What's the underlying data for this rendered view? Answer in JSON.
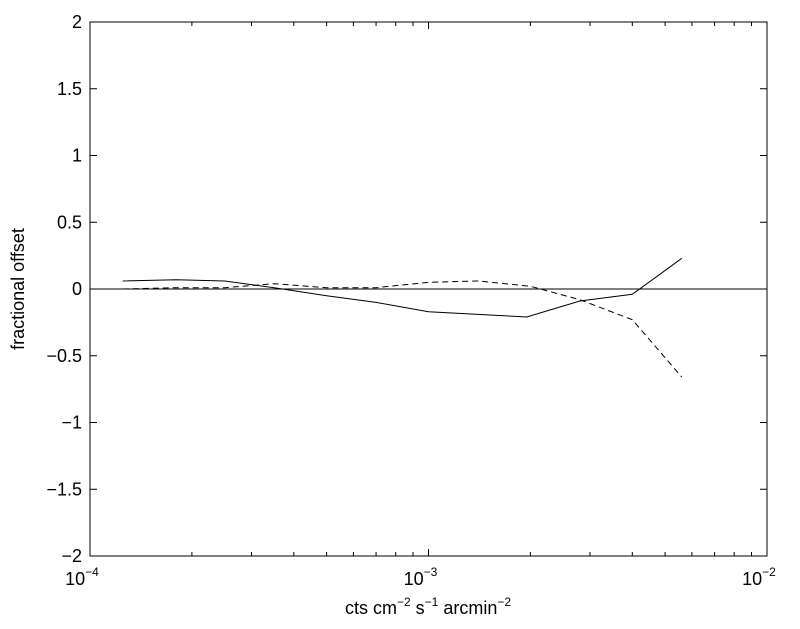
{
  "chart_data": {
    "type": "line",
    "title": "",
    "xlabel": {
      "parts": [
        {
          "text": "cts cm"
        },
        {
          "text": "−2",
          "sup": true
        },
        {
          "text": " s"
        },
        {
          "text": "−1",
          "sup": true
        },
        {
          "text": " arcmin"
        },
        {
          "text": "−2",
          "sup": true
        }
      ]
    },
    "ylabel": "fractional offset",
    "xscale": "log",
    "xlim": [
      0.0001,
      0.01
    ],
    "ylim": [
      -2,
      2
    ],
    "grid": false,
    "legend": "none",
    "x_ticks": [
      {
        "value": 0.0001,
        "base": "10",
        "exp": "−4"
      },
      {
        "value": 0.001,
        "base": "10",
        "exp": "−3"
      },
      {
        "value": 0.01,
        "base": "10",
        "exp": "−2"
      }
    ],
    "y_ticks": [
      {
        "value": 2,
        "label": "2"
      },
      {
        "value": 1.5,
        "label": "1.5"
      },
      {
        "value": 1,
        "label": "1"
      },
      {
        "value": 0.5,
        "label": "0.5"
      },
      {
        "value": 0,
        "label": "0"
      },
      {
        "value": -0.5,
        "label": "−0.5"
      },
      {
        "value": -1,
        "label": "−1"
      },
      {
        "value": -1.5,
        "label": "−1.5"
      },
      {
        "value": -2,
        "label": "−2"
      }
    ],
    "reference_line": {
      "y": 0,
      "style": "solid"
    },
    "series": [
      {
        "style": "solid",
        "color": "#000000",
        "x": [
          0.000125,
          0.00018,
          0.00025,
          0.00035,
          0.0005,
          0.0007,
          0.001,
          0.0014,
          0.00195,
          0.0028,
          0.004,
          0.0056
        ],
        "y": [
          0.06,
          0.07,
          0.06,
          0.01,
          -0.05,
          -0.1,
          -0.17,
          -0.19,
          -0.21,
          -0.09,
          -0.04,
          0.23
        ]
      },
      {
        "style": "dashed",
        "color": "#000000",
        "x": [
          0.000125,
          0.00018,
          0.00025,
          0.00035,
          0.0005,
          0.0007,
          0.001,
          0.0014,
          0.002,
          0.0028,
          0.004,
          0.0056
        ],
        "y": [
          0.0,
          0.01,
          0.01,
          0.04,
          0.01,
          0.01,
          0.05,
          0.06,
          0.02,
          -0.08,
          -0.23,
          -0.66
        ]
      }
    ]
  }
}
